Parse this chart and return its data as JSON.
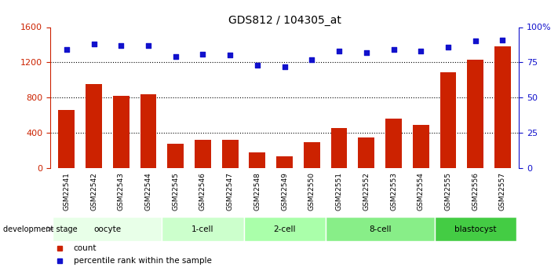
{
  "title": "GDS812 / 104305_at",
  "samples": [
    "GSM22541",
    "GSM22542",
    "GSM22543",
    "GSM22544",
    "GSM22545",
    "GSM22546",
    "GSM22547",
    "GSM22548",
    "GSM22549",
    "GSM22550",
    "GSM22551",
    "GSM22552",
    "GSM22553",
    "GSM22554",
    "GSM22555",
    "GSM22556",
    "GSM22557"
  ],
  "counts": [
    660,
    950,
    820,
    840,
    280,
    320,
    320,
    175,
    130,
    290,
    450,
    350,
    560,
    490,
    1090,
    1230,
    1380
  ],
  "percentiles": [
    84,
    88,
    87,
    87,
    79,
    81,
    80,
    73,
    72,
    77,
    83,
    82,
    84,
    83,
    86,
    90,
    91
  ],
  "bar_color": "#cc2200",
  "dot_color": "#1111cc",
  "ylim_left": [
    0,
    1600
  ],
  "ylim_right": [
    0,
    100
  ],
  "yticks_left": [
    0,
    400,
    800,
    1200,
    1600
  ],
  "yticks_right": [
    0,
    25,
    50,
    75,
    100
  ],
  "yticklabels_right": [
    "0",
    "25",
    "50",
    "75",
    "100%"
  ],
  "stages": [
    {
      "label": "oocyte",
      "start": 0,
      "end": 3,
      "color": "#e8ffe8"
    },
    {
      "label": "1-cell",
      "start": 4,
      "end": 6,
      "color": "#ccffcc"
    },
    {
      "label": "2-cell",
      "start": 7,
      "end": 9,
      "color": "#aaffaa"
    },
    {
      "label": "8-cell",
      "start": 10,
      "end": 13,
      "color": "#88ee88"
    },
    {
      "label": "blastocyst",
      "start": 14,
      "end": 16,
      "color": "#44cc44"
    }
  ],
  "dev_stage_label": "development stage",
  "legend_count_label": "count",
  "legend_percentile_label": "percentile rank within the sample",
  "xticklabel_bg": "#cccccc",
  "grid_yticks": [
    400,
    800,
    1200
  ]
}
